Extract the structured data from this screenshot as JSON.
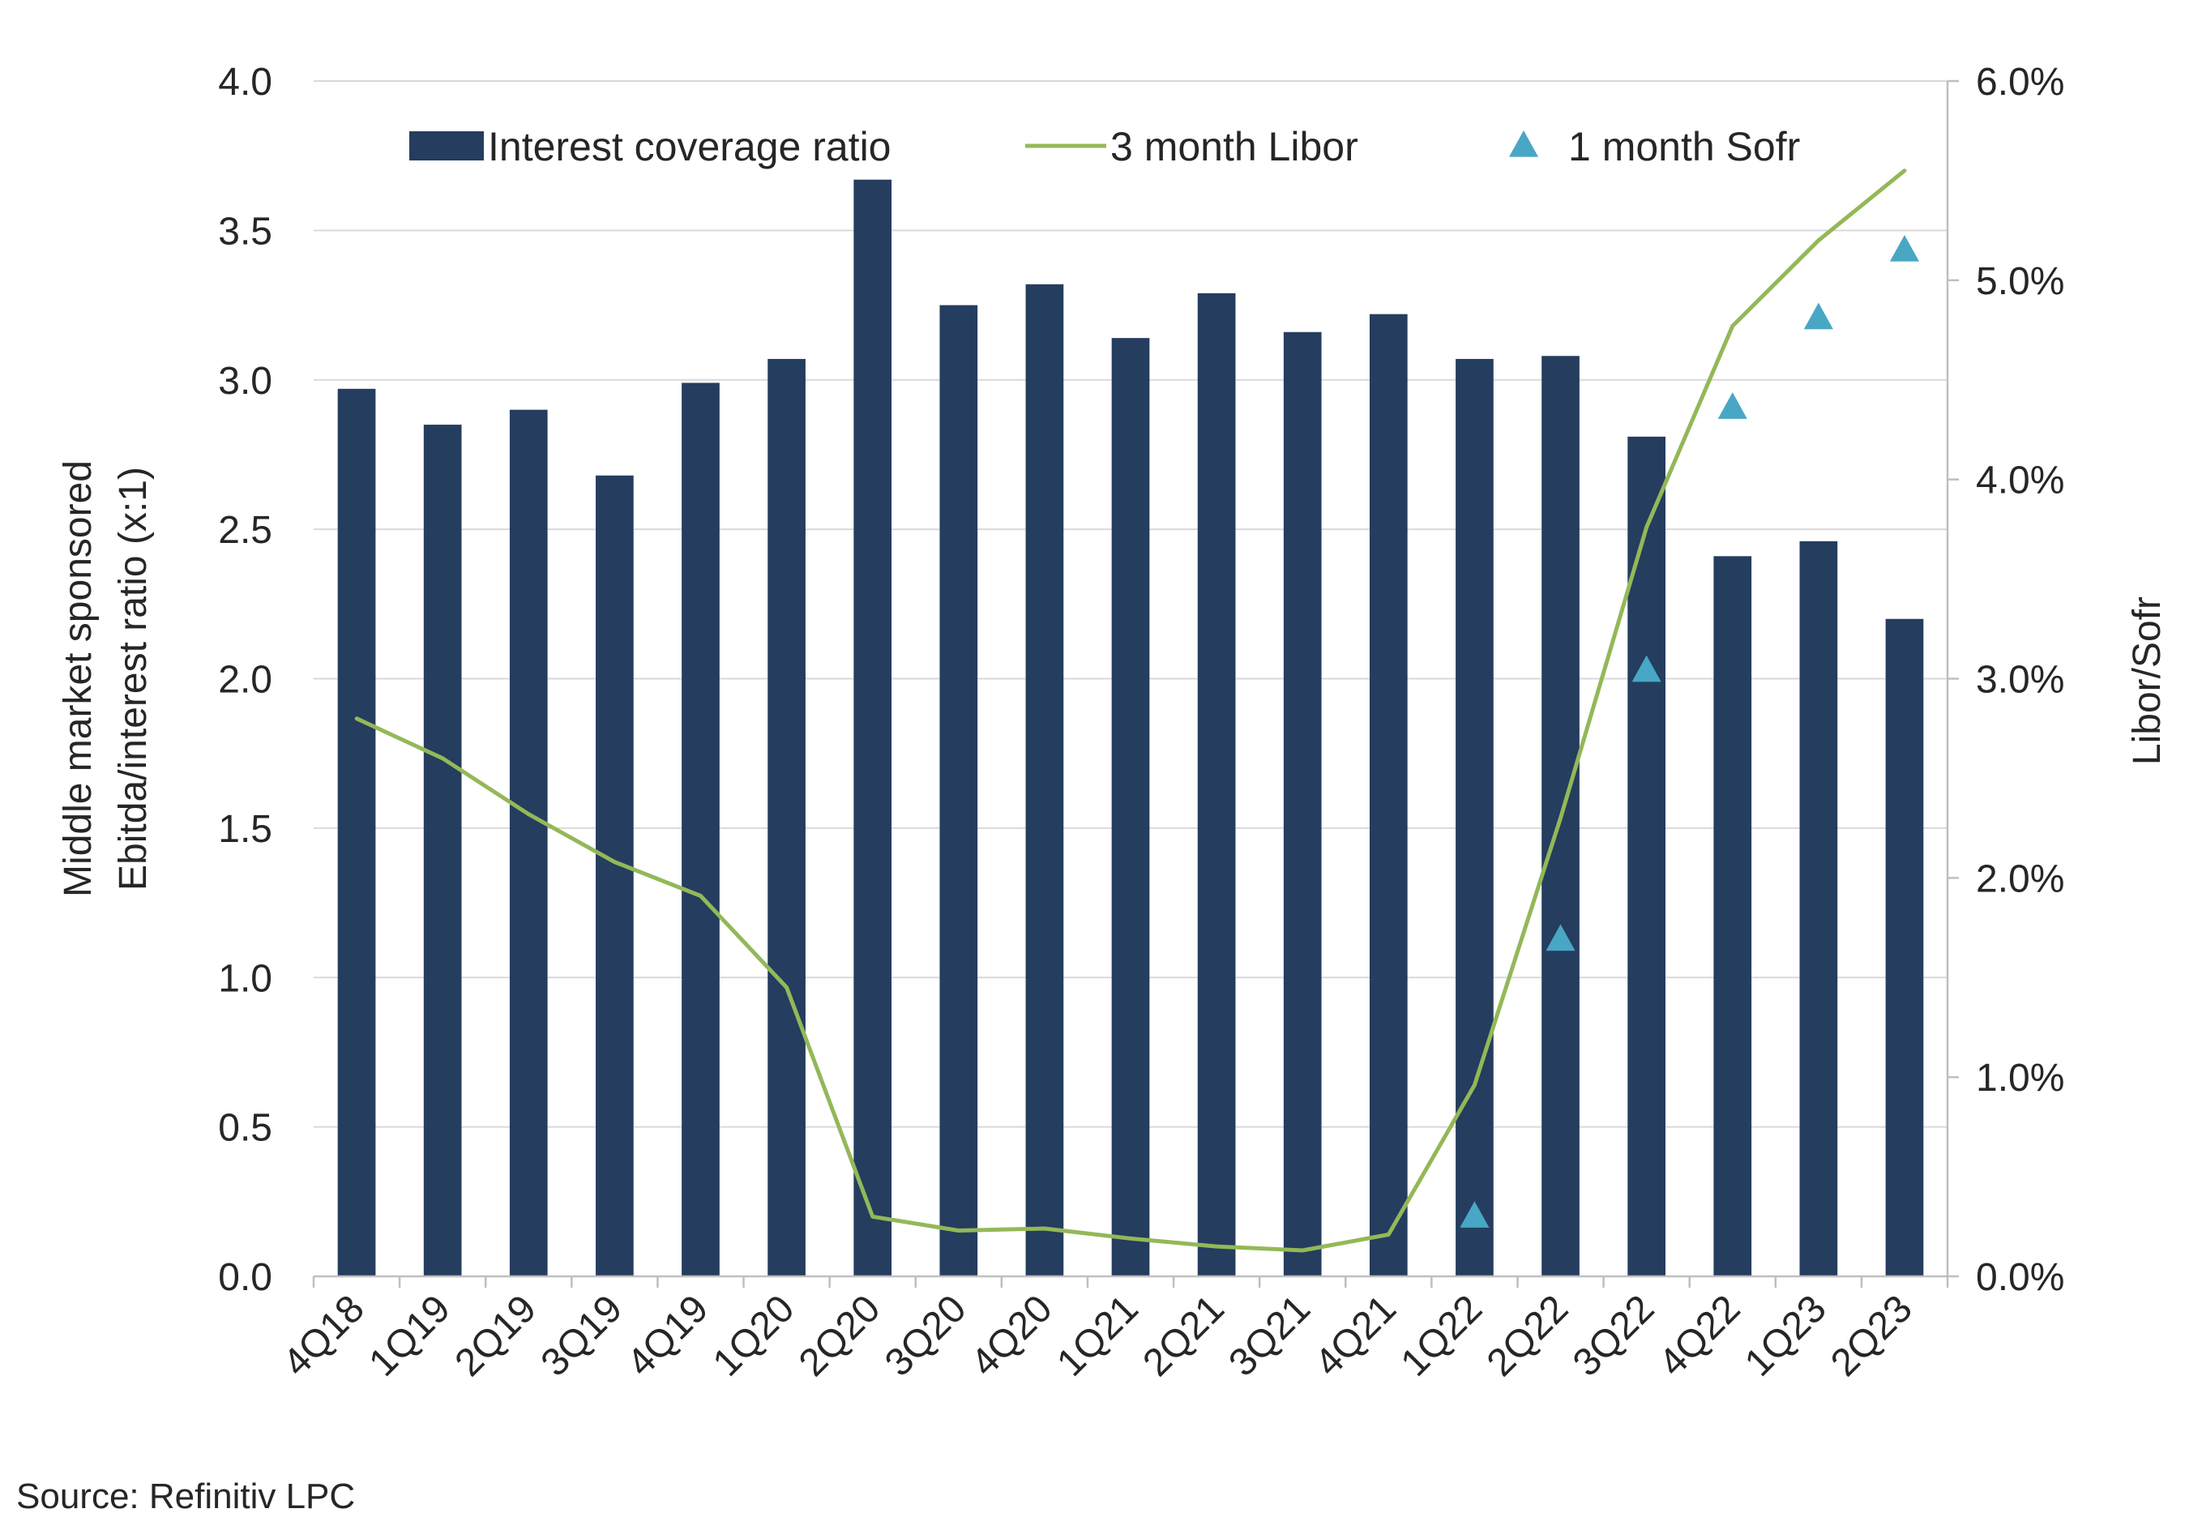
{
  "colors": {
    "bar": "#253d5e",
    "line": "#93b858",
    "marker": "#48a7c5",
    "grid": "#d9d9d9",
    "axis": "#bfbfbf"
  },
  "chart_data": {
    "type": "bar",
    "categories": [
      "4Q18",
      "1Q19",
      "2Q19",
      "3Q19",
      "4Q19",
      "1Q20",
      "2Q20",
      "3Q20",
      "4Q20",
      "1Q21",
      "2Q21",
      "3Q21",
      "4Q21",
      "1Q22",
      "2Q22",
      "3Q22",
      "4Q22",
      "1Q23",
      "2Q23"
    ],
    "series": [
      {
        "name": "Interest coverage ratio",
        "type": "bar",
        "axis": "left",
        "values": [
          2.97,
          2.85,
          2.9,
          2.68,
          2.99,
          3.07,
          3.67,
          3.25,
          3.32,
          3.14,
          3.29,
          3.16,
          3.22,
          3.07,
          3.08,
          2.81,
          2.41,
          2.46,
          2.2
        ]
      },
      {
        "name": "3 month Libor",
        "type": "line",
        "axis": "right",
        "values": [
          2.8,
          2.6,
          2.32,
          2.08,
          1.91,
          1.45,
          0.3,
          0.23,
          0.24,
          0.19,
          0.15,
          0.13,
          0.21,
          0.96,
          2.3,
          3.76,
          4.77,
          5.2,
          5.55
        ]
      },
      {
        "name": "1 month Sofr",
        "type": "scatter",
        "axis": "right",
        "values": [
          null,
          null,
          null,
          null,
          null,
          null,
          null,
          null,
          null,
          null,
          null,
          null,
          null,
          0.3,
          1.69,
          3.04,
          4.36,
          4.81,
          5.15
        ]
      }
    ],
    "ylabel_lines": [
      "Middle market sponsored",
      "Ebitda/interest ratio (x:1)"
    ],
    "y2label": "Libor/Sofr",
    "ylim": [
      0,
      4.0
    ],
    "yticks": [
      "0.0",
      "0.5",
      "1.0",
      "1.5",
      "2.0",
      "2.5",
      "3.0",
      "3.5",
      "4.0"
    ],
    "y2lim": [
      0,
      6.0
    ],
    "y2ticks": [
      "0.0%",
      "1.0%",
      "2.0%",
      "3.0%",
      "4.0%",
      "5.0%",
      "6.0%"
    ],
    "legend_position": "top",
    "grid": true
  },
  "source": "Source: Refinitiv LPC"
}
